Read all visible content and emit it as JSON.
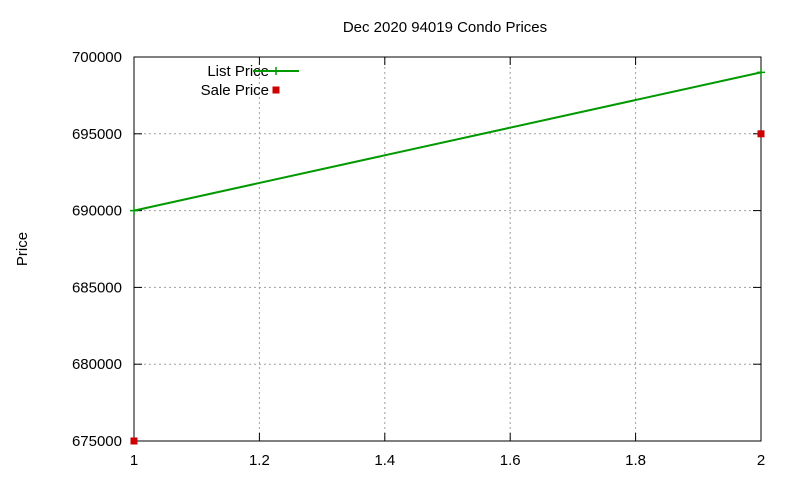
{
  "chart_data": {
    "type": "line",
    "title": "Dec 2020 94019 Condo Prices",
    "ylabel": "Price",
    "xlabel": "",
    "xlim": [
      1,
      2
    ],
    "ylim": [
      675000,
      700000
    ],
    "x_ticks": [
      1,
      1.2,
      1.4,
      1.6,
      1.8,
      2
    ],
    "x_tick_labels": [
      "1",
      "1.2",
      "1.4",
      "1.6",
      "1.8",
      "2"
    ],
    "y_ticks": [
      675000,
      680000,
      685000,
      690000,
      695000,
      700000
    ],
    "y_tick_labels": [
      "675000",
      "680000",
      "685000",
      "690000",
      "695000",
      "700000"
    ],
    "grid": true,
    "legend_position": "top-left",
    "series": [
      {
        "name": "List Price",
        "style": "linespoints",
        "marker": "plus",
        "color": "#009900",
        "x": [
          1,
          2
        ],
        "y": [
          690000,
          699000
        ]
      },
      {
        "name": "Sale Price",
        "style": "points",
        "marker": "square",
        "color": "#cc0000",
        "x": [
          1,
          2
        ],
        "y": [
          675000,
          695000
        ]
      }
    ]
  }
}
